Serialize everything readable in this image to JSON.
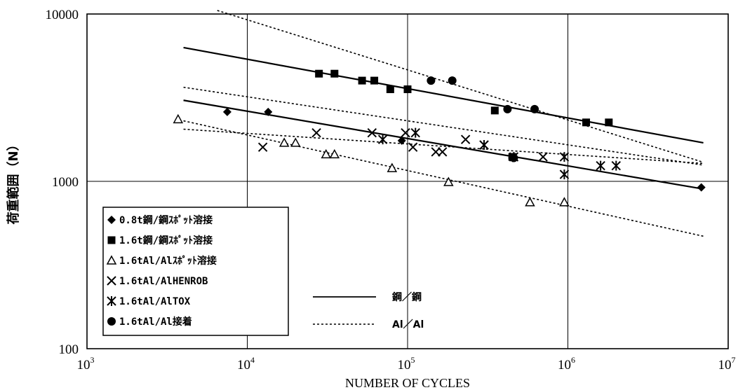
{
  "chart_data": {
    "type": "scatter",
    "title": "",
    "xlabel": "NUMBER OF CYCLES",
    "ylabel": "荷重範囲（N）",
    "xscale": "log",
    "yscale": "log",
    "xlim": [
      1000,
      10000000
    ],
    "ylim": [
      100,
      10000
    ],
    "grid": true,
    "x_ticks": [
      {
        "base": "10",
        "exp": "3",
        "value": 1000
      },
      {
        "base": "10",
        "exp": "4",
        "value": 10000
      },
      {
        "base": "10",
        "exp": "5",
        "value": 100000
      },
      {
        "base": "10",
        "exp": "6",
        "value": 1000000
      },
      {
        "base": "10",
        "exp": "7",
        "value": 10000000
      }
    ],
    "y_ticks": [
      {
        "label": "10000",
        "value": 10000
      },
      {
        "label": "1000",
        "value": 1000
      },
      {
        "label": "100",
        "value": 100
      }
    ],
    "legend_position": "bottom-left",
    "series": [
      {
        "name": "0.8t鋼/鋼ｽﾎﾟｯﾄ溶接",
        "marker": "diamond",
        "points": [
          [
            7500,
            2600
          ],
          [
            13500,
            2600
          ],
          [
            92000,
            1750
          ],
          [
            450000,
            1380
          ],
          [
            6800000,
            920
          ]
        ]
      },
      {
        "name": "1.6t鋼/鋼ｽﾎﾟｯﾄ溶接",
        "marker": "square",
        "points": [
          [
            28000,
            4400
          ],
          [
            35000,
            4400
          ],
          [
            52000,
            4000
          ],
          [
            62000,
            4000
          ],
          [
            78000,
            3550
          ],
          [
            100000,
            3550
          ],
          [
            350000,
            2650
          ],
          [
            450000,
            1400
          ],
          [
            1300000,
            2250
          ],
          [
            1800000,
            2250
          ]
        ]
      },
      {
        "name": "1.6tAl/Alｽﾎﾟｯﾄ溶接",
        "marker": "triangle",
        "points": [
          [
            3700,
            2350
          ],
          [
            17000,
            1700
          ],
          [
            20000,
            1700
          ],
          [
            31000,
            1450
          ],
          [
            35000,
            1450
          ],
          [
            80000,
            1200
          ],
          [
            180000,
            990
          ],
          [
            580000,
            750
          ],
          [
            950000,
            750
          ]
        ]
      },
      {
        "name": "1.6tAl/AlHENROB",
        "marker": "x",
        "points": [
          [
            12500,
            1600
          ],
          [
            27000,
            1950
          ],
          [
            60000,
            1950
          ],
          [
            97000,
            1950
          ],
          [
            108000,
            1600
          ],
          [
            150000,
            1500
          ],
          [
            165000,
            1500
          ],
          [
            230000,
            1780
          ],
          [
            300000,
            1650
          ],
          [
            700000,
            1400
          ]
        ]
      },
      {
        "name": "1.6tAl/AlTOX",
        "marker": "asterisk",
        "points": [
          [
            70000,
            1780
          ],
          [
            112000,
            1950
          ],
          [
            300000,
            1650
          ],
          [
            460000,
            1400
          ],
          [
            950000,
            1400
          ],
          [
            950000,
            1100
          ],
          [
            1600000,
            1240
          ],
          [
            2000000,
            1240
          ]
        ]
      },
      {
        "name": "1.6tAl/Al接着",
        "marker": "circle",
        "points": [
          [
            140000,
            4000
          ],
          [
            190000,
            4000
          ],
          [
            420000,
            2700
          ],
          [
            620000,
            2700
          ],
          [
            460000,
            1380
          ]
        ]
      }
    ],
    "fit_lines": [
      {
        "style": "solid",
        "points": [
          [
            4000,
            6300
          ],
          [
            7000000,
            1700
          ]
        ]
      },
      {
        "style": "solid",
        "points": [
          [
            4000,
            3050
          ],
          [
            7000000,
            900
          ]
        ]
      },
      {
        "style": "dotted",
        "points": [
          [
            6500,
            10500
          ],
          [
            7000000,
            1300
          ]
        ]
      },
      {
        "style": "dotted",
        "points": [
          [
            4000,
            3650
          ],
          [
            7000000,
            1250
          ]
        ]
      },
      {
        "style": "dotted",
        "points": [
          [
            4000,
            2050
          ],
          [
            7000000,
            1280
          ]
        ]
      },
      {
        "style": "dotted",
        "points": [
          [
            4000,
            2300
          ],
          [
            7000000,
            470
          ]
        ]
      }
    ],
    "line_legend": [
      {
        "style": "solid",
        "label": "鋼／鋼"
      },
      {
        "style": "dotted",
        "label": "Al／Al"
      }
    ]
  }
}
